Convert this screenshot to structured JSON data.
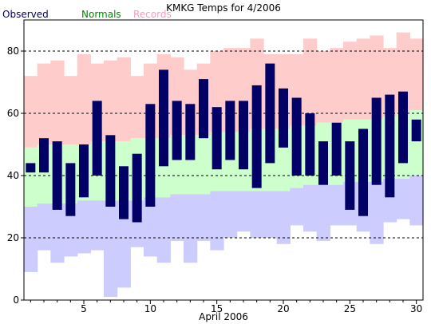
{
  "chart_data": {
    "type": "bar",
    "title": "KMKG Temps for 4/2006",
    "xlabel": "April 2006",
    "ylabel": "",
    "ylim": [
      0,
      90
    ],
    "xlim": [
      0.5,
      30.5
    ],
    "yticks": [
      0,
      20,
      40,
      60,
      80
    ],
    "xticks": [
      5,
      10,
      15,
      20,
      25,
      30
    ],
    "grid_lines": [
      20,
      40,
      60,
      80
    ],
    "legend": [
      "Observed",
      "Normals",
      "Records"
    ],
    "colors": {
      "observed": "#000066",
      "normals": "#ccffcc",
      "records_high": "#ffcccc",
      "records_low": "#ccccff",
      "observed_legend": "#000066",
      "normals_legend": "#008800",
      "records_legend": "#ff99bb"
    },
    "days": [
      1,
      2,
      3,
      4,
      5,
      6,
      7,
      8,
      9,
      10,
      11,
      12,
      13,
      14,
      15,
      16,
      17,
      18,
      19,
      20,
      21,
      22,
      23,
      24,
      25,
      26,
      27,
      28,
      29,
      30
    ],
    "observed_high": [
      44,
      52,
      51,
      44,
      50,
      64,
      53,
      43,
      47,
      63,
      74,
      64,
      63,
      71,
      62,
      64,
      64,
      69,
      76,
      68,
      65,
      60,
      51,
      57,
      51,
      55,
      65,
      66,
      67,
      58
    ],
    "observed_low": [
      41,
      41,
      29,
      27,
      33,
      40,
      30,
      26,
      25,
      30,
      43,
      45,
      45,
      52,
      42,
      45,
      42,
      36,
      44,
      49,
      40,
      40,
      37,
      40,
      29,
      27,
      37,
      33,
      44,
      51
    ],
    "normal_high": [
      49,
      50,
      50,
      50,
      50,
      51,
      51,
      51,
      52,
      52,
      52,
      53,
      53,
      53,
      54,
      54,
      54,
      55,
      55,
      55,
      56,
      56,
      57,
      57,
      58,
      58,
      58,
      59,
      60,
      61
    ],
    "normal_low": [
      30,
      31,
      31,
      31,
      32,
      32,
      32,
      32,
      32,
      33,
      33,
      34,
      34,
      34,
      35,
      35,
      35,
      35,
      35,
      35,
      36,
      37,
      37,
      37,
      38,
      38,
      38,
      39,
      39,
      40
    ],
    "record_high": [
      72,
      76,
      77,
      72,
      79,
      76,
      77,
      78,
      72,
      76,
      79,
      78,
      74,
      76,
      80,
      81,
      81,
      84,
      79,
      79,
      79,
      84,
      80,
      81,
      83,
      84,
      85,
      81,
      86,
      84
    ],
    "record_low": [
      9,
      16,
      12,
      14,
      15,
      16,
      1,
      4,
      17,
      14,
      12,
      19,
      12,
      19,
      16,
      20,
      22,
      20,
      20,
      18,
      24,
      22,
      19,
      24,
      24,
      22,
      18,
      25,
      26,
      24
    ]
  }
}
